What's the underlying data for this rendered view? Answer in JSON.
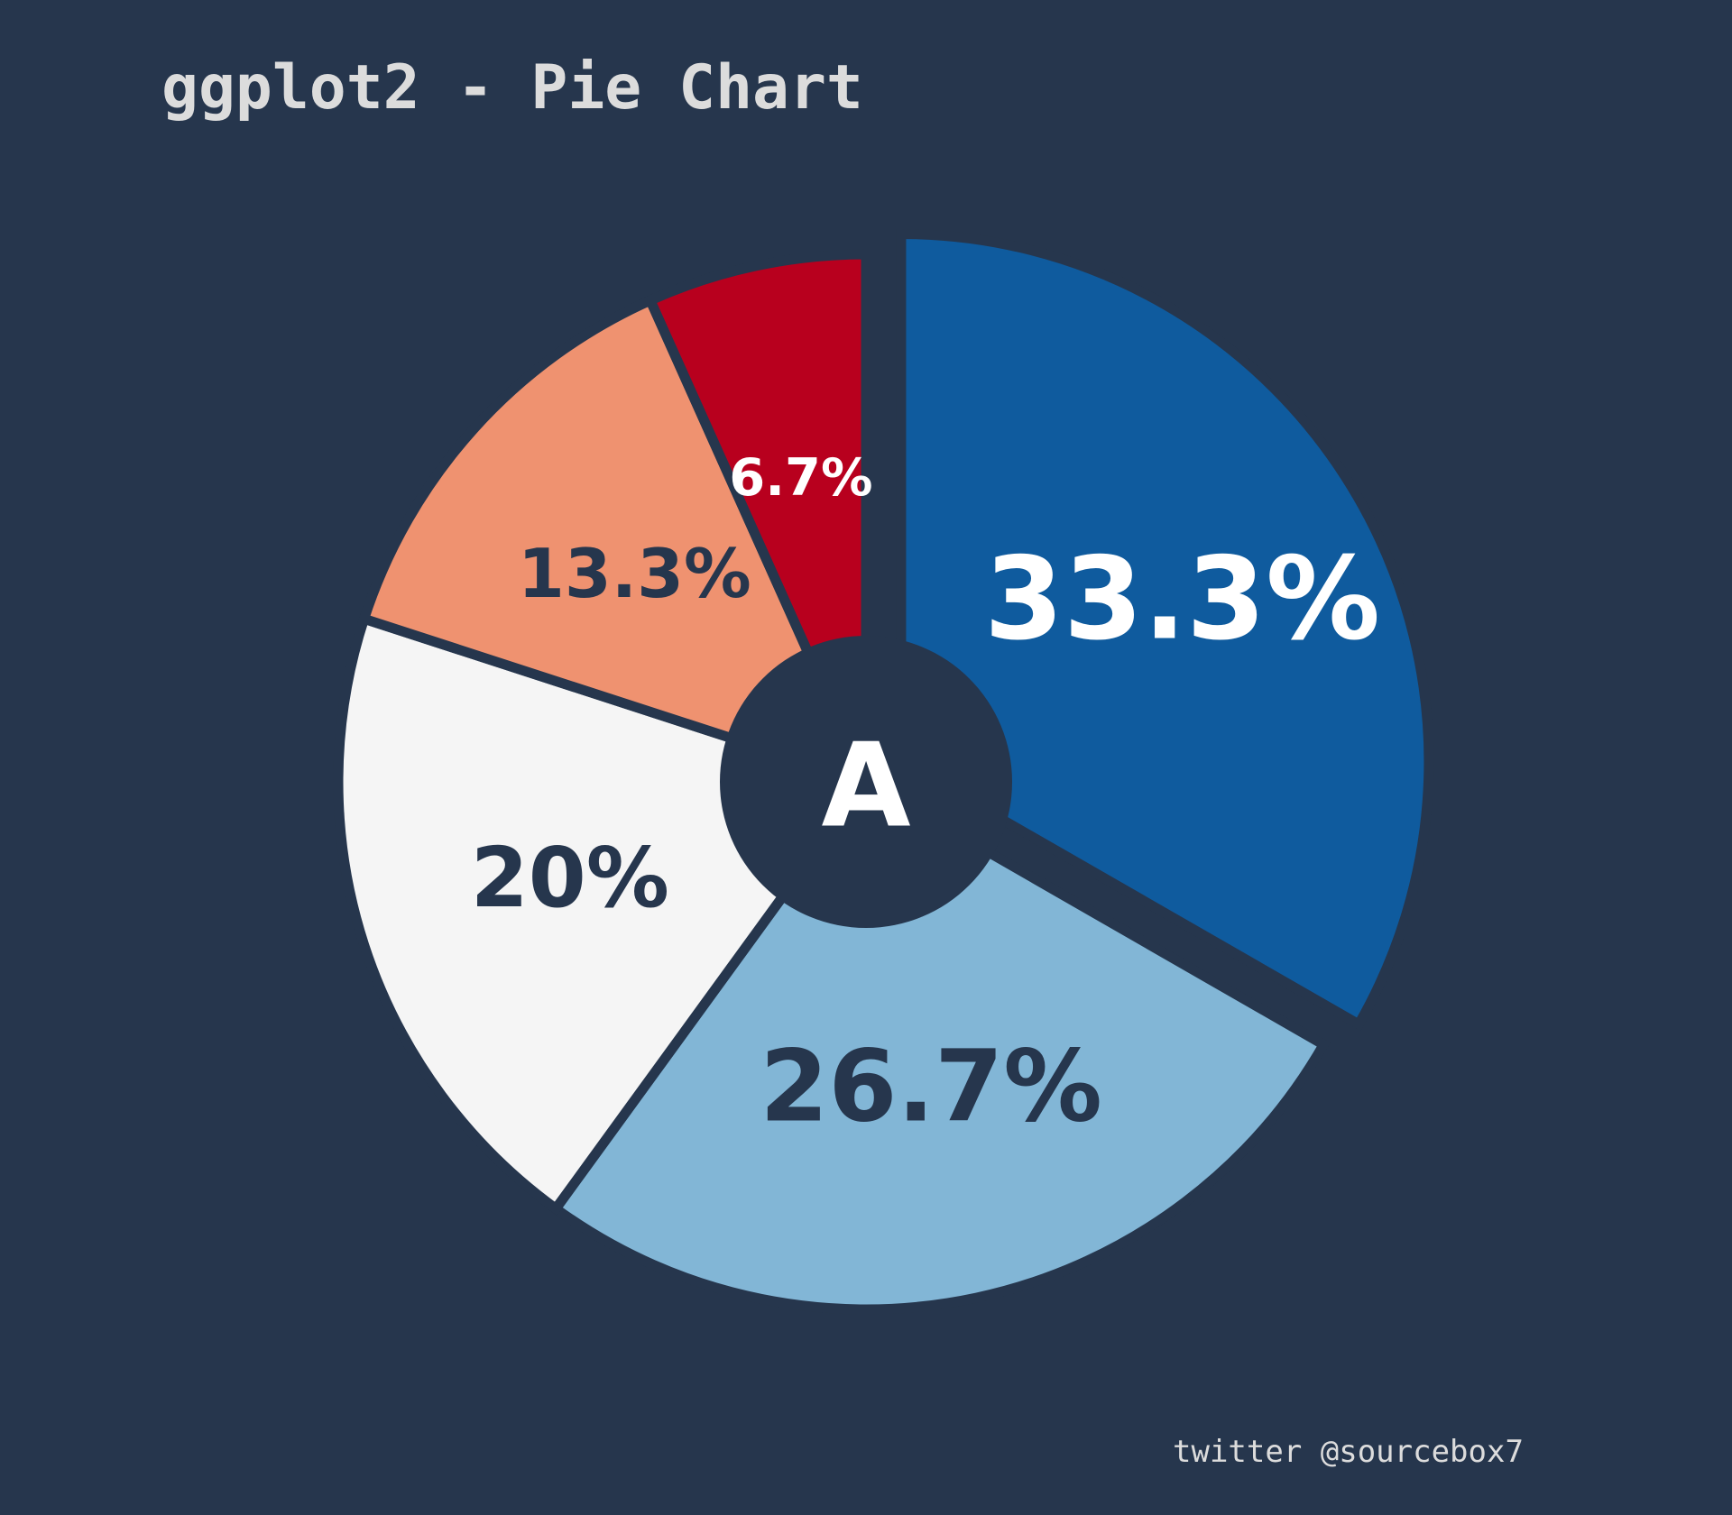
{
  "title": "ggplot2 - Pie Chart",
  "caption": "twitter @sourcebox7",
  "background_color": "#26364d",
  "chart_data": {
    "type": "pie",
    "title": "ggplot2 - Pie Chart",
    "center_label": "A",
    "start_angle_deg": 0,
    "direction": "clockwise",
    "legend": "none",
    "slices": [
      {
        "label": "33.3%",
        "value": 33.3,
        "color": "#0f5b9e",
        "text_color": "#ffffff",
        "exploded": true
      },
      {
        "label": "26.7%",
        "value": 26.7,
        "color": "#82b6d6",
        "text_color": "#26364d",
        "exploded": false
      },
      {
        "label": "20%",
        "value": 20.0,
        "color": "#f5f5f5",
        "text_color": "#26364d",
        "exploded": false
      },
      {
        "label": "13.3%",
        "value": 13.3,
        "color": "#ef9270",
        "text_color": "#26364d",
        "exploded": false
      },
      {
        "label": "6.7%",
        "value": 6.7,
        "color": "#b8001e",
        "text_color": "#ffffff",
        "exploded": false
      }
    ]
  }
}
